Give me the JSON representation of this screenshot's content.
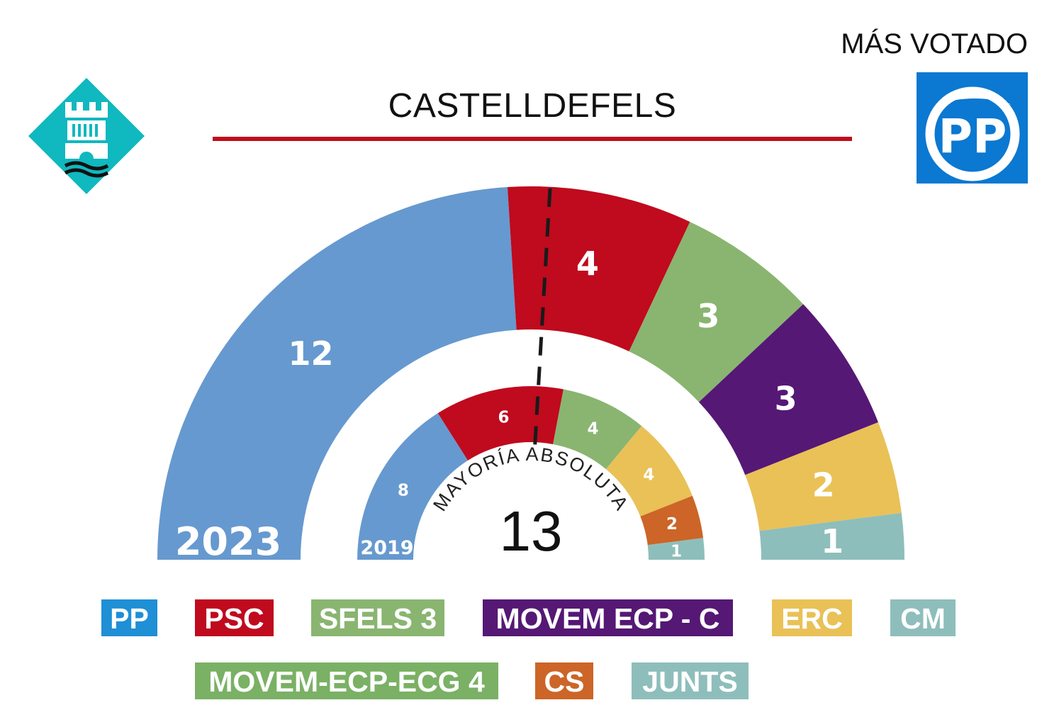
{
  "title": "CASTELLDEFELS",
  "winner": {
    "label": "MÁS VOTADO",
    "party": "PP",
    "logo_text": "PP",
    "color": "#0b78d1"
  },
  "city_logo": {
    "icon": "castelldefels-castle-icon",
    "color": "#10b8bf"
  },
  "chart_data": [
    {
      "type": "semicircle-parliament",
      "year": "2023",
      "seats_total": 25,
      "majority": {
        "label": "MAYORÍA ABSOLUTA",
        "seats": 13
      },
      "series": [
        {
          "name": "PP",
          "seats": 12,
          "color": "#6699cf"
        },
        {
          "name": "PSC",
          "seats": 4,
          "color": "#c00a1e"
        },
        {
          "name": "SFELS 3",
          "seats": 3,
          "color": "#89b570"
        },
        {
          "name": "MOVEM ECP - C",
          "seats": 3,
          "color": "#551875"
        },
        {
          "name": "ERC",
          "seats": 2,
          "color": "#e9c157"
        },
        {
          "name": "CM",
          "seats": 1,
          "color": "#8ebebb"
        }
      ]
    },
    {
      "type": "semicircle-parliament",
      "year": "2019",
      "seats_total": 25,
      "majority": {
        "label": "MAYORÍA ABSOLUTA",
        "seats": 13
      },
      "series": [
        {
          "name": "PP",
          "seats": 8,
          "color": "#6699cf"
        },
        {
          "name": "PSC",
          "seats": 6,
          "color": "#c00a1e"
        },
        {
          "name": "MOVEM-ECP-ECG 4",
          "seats": 4,
          "color": "#89b570"
        },
        {
          "name": "ERC",
          "seats": 4,
          "color": "#e9c157"
        },
        {
          "name": "CS",
          "seats": 2,
          "color": "#cc6527"
        },
        {
          "name": "JUNTS",
          "seats": 1,
          "color": "#8ebebb"
        }
      ]
    }
  ],
  "legend": [
    {
      "label": "PP",
      "color": "#1f8fd6"
    },
    {
      "label": "PSC",
      "color": "#c00a1e"
    },
    {
      "label": "SFELS 3",
      "color": "#89b570"
    },
    {
      "label": "MOVEM ECP - C",
      "color": "#551875"
    },
    {
      "label": "ERC",
      "color": "#e9c157"
    },
    {
      "label": "CM",
      "color": "#8ebebb"
    },
    {
      "label": "MOVEM-ECP-ECG 4",
      "color": "#7ab165"
    },
    {
      "label": "CS",
      "color": "#cc6527"
    },
    {
      "label": "JUNTS",
      "color": "#8ebebb"
    }
  ]
}
